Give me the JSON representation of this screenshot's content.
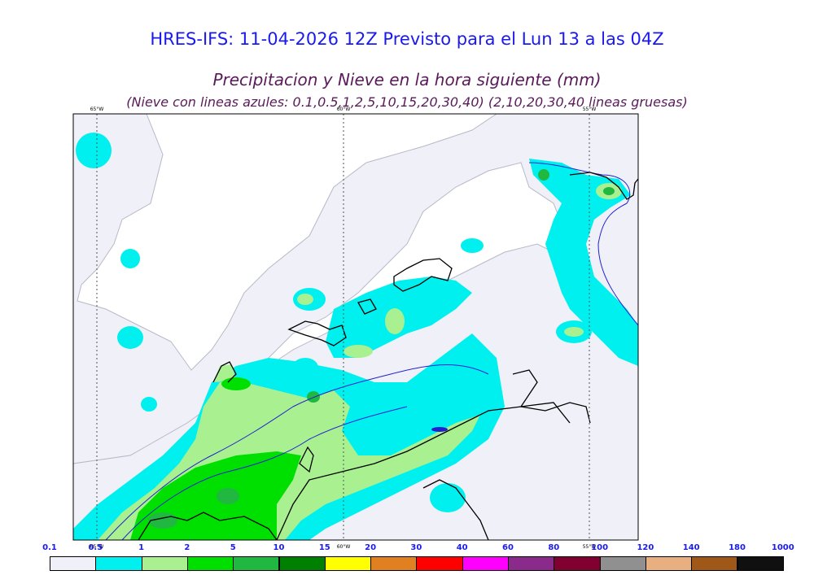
{
  "header": {
    "title": "HRES-IFS: 11-04-2026 12Z Previsto para el Lun 13 a las 04Z",
    "subtitle": "Precipitacion y Nieve en la hora siguiente (mm)",
    "note": "(Nieve con lineas azules: 0.1,0.5,1,2,5,10,15,20,30,40)  (2,10,20,30,40 lineas gruesas)"
  },
  "map": {
    "meridians": [
      "65°W",
      "60°W",
      "55°W"
    ],
    "land_color": "#f0f0f8",
    "coast_color": "#000000"
  },
  "legend": {
    "ticks": [
      "0.1",
      "0.5",
      "1",
      "2",
      "5",
      "10",
      "15",
      "20",
      "30",
      "40",
      "60",
      "80",
      "100",
      "120",
      "140",
      "180",
      "1000"
    ],
    "colors": [
      "#f0f0f8",
      "#00f0f0",
      "#a8f090",
      "#00e000",
      "#20b840",
      "#008000",
      "#ffff00",
      "#e08020",
      "#ff0000",
      "#ff00ff",
      "#8a2a8a",
      "#800030",
      "#909090",
      "#e8b080",
      "#a05818",
      "#101010"
    ]
  }
}
